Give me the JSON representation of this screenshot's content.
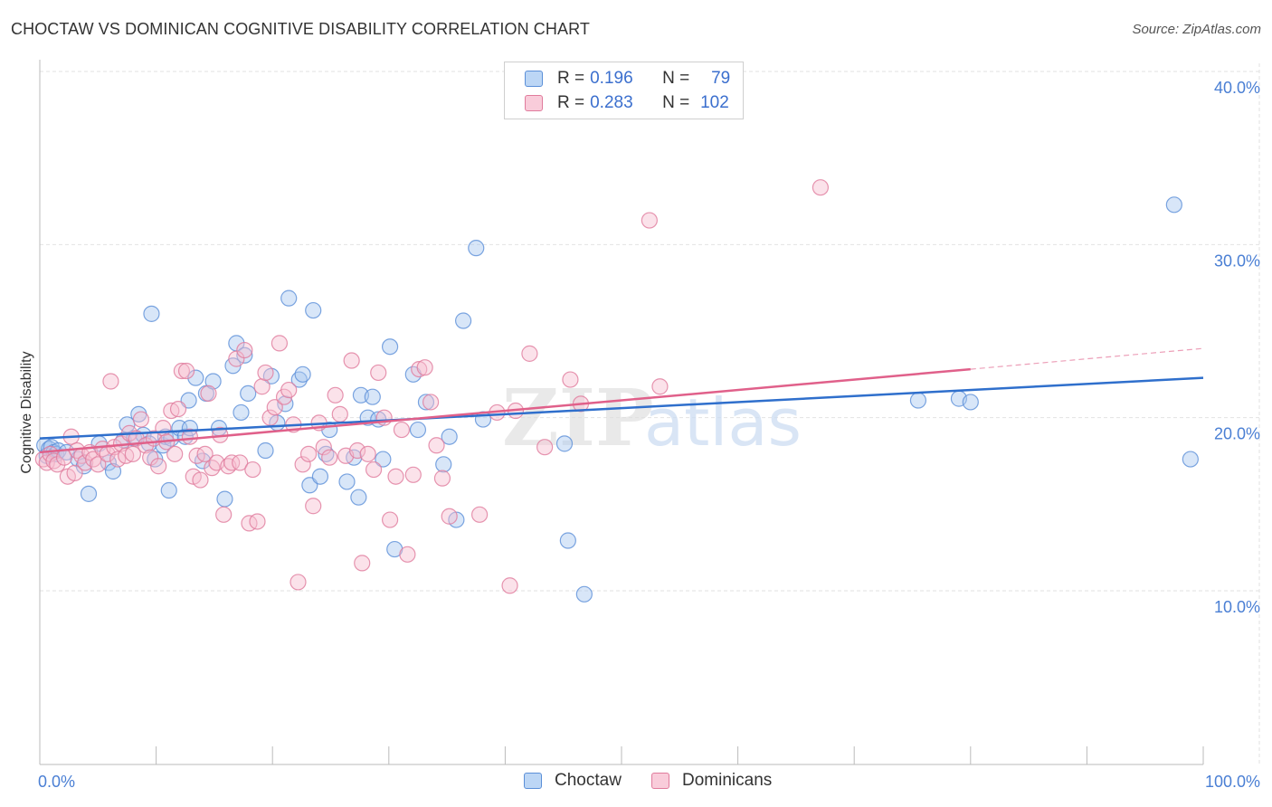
{
  "title": "CHOCTAW VS DOMINICAN COGNITIVE DISABILITY CORRELATION CHART",
  "source": "Source: ZipAtlas.com",
  "watermark": "ZIPatlas",
  "colors": {
    "choctaw_fill": "#a9c8f0",
    "choctaw_stroke": "#5b8fd8",
    "choctaw_line": "#2f6fcc",
    "dominican_fill": "#f7bfd0",
    "dominican_stroke": "#e07b9c",
    "dominican_line": "#e0608a",
    "tick_text": "#4a7fd4",
    "grid": "#e2e2e2"
  },
  "legend": {
    "rows": [
      {
        "r_label": "R =",
        "r_value": "0.196",
        "n_label": "N =",
        "n_value": "79"
      },
      {
        "r_label": "R =",
        "r_value": "0.283",
        "n_label": "N =",
        "n_value": "102"
      }
    ]
  },
  "bottom_legend": [
    "Choctaw",
    "Dominicans"
  ],
  "chart_data": {
    "type": "scatter",
    "title": "CHOCTAW VS DOMINICAN COGNITIVE DISABILITY CORRELATION CHART",
    "xlabel": "",
    "ylabel": "Cognitive Disability",
    "xlim": [
      0,
      100
    ],
    "ylim": [
      0,
      42
    ],
    "x_tick_labels": [
      "0.0%",
      "100.0%"
    ],
    "y_ticks": [
      10,
      20,
      30,
      40
    ],
    "y_tick_labels": [
      "10.0%",
      "20.0%",
      "30.0%",
      "40.0%"
    ],
    "grid": true,
    "legend_position": "top-center",
    "series": [
      {
        "name": "Choctaw",
        "r": 0.196,
        "n": 79,
        "trend": {
          "x": [
            0,
            100
          ],
          "y": [
            18.8,
            22.3
          ],
          "dashed_from": null
        },
        "points": [
          [
            0.4,
            18.4
          ],
          [
            0.6,
            17.8
          ],
          [
            0.8,
            18.2
          ],
          [
            1.0,
            18.3
          ],
          [
            1.2,
            18.0
          ],
          [
            1.4,
            17.9
          ],
          [
            1.6,
            18.1
          ],
          [
            2.3,
            18.0
          ],
          [
            3.3,
            17.6
          ],
          [
            3.8,
            17.2
          ],
          [
            4.2,
            15.6
          ],
          [
            5.1,
            18.5
          ],
          [
            5.9,
            17.4
          ],
          [
            6.3,
            16.9
          ],
          [
            7.2,
            18.7
          ],
          [
            7.5,
            19.6
          ],
          [
            8.1,
            18.8
          ],
          [
            8.5,
            20.2
          ],
          [
            8.9,
            19.0
          ],
          [
            9.4,
            18.5
          ],
          [
            9.6,
            26.0
          ],
          [
            9.9,
            17.6
          ],
          [
            10.6,
            18.4
          ],
          [
            10.8,
            18.9
          ],
          [
            11.1,
            15.8
          ],
          [
            11.3,
            18.8
          ],
          [
            12.0,
            19.4
          ],
          [
            12.5,
            18.9
          ],
          [
            12.8,
            21.0
          ],
          [
            12.9,
            19.4
          ],
          [
            13.4,
            22.3
          ],
          [
            14.0,
            17.5
          ],
          [
            14.3,
            21.4
          ],
          [
            14.9,
            22.1
          ],
          [
            15.4,
            19.4
          ],
          [
            15.9,
            15.3
          ],
          [
            16.6,
            23.0
          ],
          [
            16.9,
            24.3
          ],
          [
            17.3,
            20.3
          ],
          [
            17.6,
            23.6
          ],
          [
            17.9,
            21.4
          ],
          [
            19.4,
            18.1
          ],
          [
            19.9,
            22.4
          ],
          [
            20.4,
            19.7
          ],
          [
            21.1,
            20.8
          ],
          [
            21.4,
            26.9
          ],
          [
            22.3,
            22.2
          ],
          [
            22.6,
            22.5
          ],
          [
            23.2,
            16.1
          ],
          [
            23.5,
            26.2
          ],
          [
            24.1,
            16.6
          ],
          [
            24.6,
            17.9
          ],
          [
            24.9,
            19.3
          ],
          [
            26.4,
            16.3
          ],
          [
            27.0,
            17.7
          ],
          [
            27.4,
            15.4
          ],
          [
            27.6,
            21.3
          ],
          [
            28.2,
            20.0
          ],
          [
            28.6,
            21.2
          ],
          [
            29.1,
            19.9
          ],
          [
            29.5,
            17.6
          ],
          [
            30.1,
            24.1
          ],
          [
            30.5,
            12.4
          ],
          [
            32.1,
            22.5
          ],
          [
            32.5,
            19.3
          ],
          [
            33.2,
            20.9
          ],
          [
            34.7,
            17.3
          ],
          [
            35.2,
            18.9
          ],
          [
            35.8,
            14.1
          ],
          [
            36.4,
            25.6
          ],
          [
            37.5,
            29.8
          ],
          [
            38.1,
            19.9
          ],
          [
            45.1,
            18.5
          ],
          [
            45.4,
            12.9
          ],
          [
            46.8,
            9.8
          ],
          [
            75.5,
            21.0
          ],
          [
            79.0,
            21.1
          ],
          [
            80.0,
            20.9
          ],
          [
            97.5,
            32.3
          ],
          [
            98.9,
            17.6
          ]
        ]
      },
      {
        "name": "Dominicans",
        "r": 0.283,
        "n": 102,
        "trend": {
          "x": [
            0,
            80,
            100
          ],
          "y": [
            18.0,
            22.8,
            24.0
          ],
          "dashed_from": 80
        },
        "points": [
          [
            0.3,
            17.6
          ],
          [
            0.6,
            17.4
          ],
          [
            0.9,
            17.9
          ],
          [
            1.2,
            17.5
          ],
          [
            1.5,
            17.3
          ],
          [
            2.1,
            17.7
          ],
          [
            2.4,
            16.6
          ],
          [
            2.7,
            18.9
          ],
          [
            3.0,
            16.8
          ],
          [
            3.2,
            18.1
          ],
          [
            3.6,
            17.8
          ],
          [
            3.9,
            17.4
          ],
          [
            4.3,
            18.0
          ],
          [
            4.6,
            17.6
          ],
          [
            5.0,
            17.3
          ],
          [
            5.4,
            18.2
          ],
          [
            5.8,
            17.9
          ],
          [
            6.1,
            22.1
          ],
          [
            6.4,
            18.3
          ],
          [
            6.7,
            17.6
          ],
          [
            7.0,
            18.5
          ],
          [
            7.4,
            17.8
          ],
          [
            7.7,
            19.1
          ],
          [
            8.0,
            17.9
          ],
          [
            8.3,
            18.8
          ],
          [
            8.7,
            19.9
          ],
          [
            9.1,
            18.4
          ],
          [
            9.5,
            17.7
          ],
          [
            9.8,
            18.8
          ],
          [
            10.2,
            17.2
          ],
          [
            10.6,
            19.4
          ],
          [
            10.9,
            18.6
          ],
          [
            11.3,
            20.4
          ],
          [
            11.6,
            17.9
          ],
          [
            11.9,
            20.5
          ],
          [
            12.2,
            22.7
          ],
          [
            12.6,
            22.7
          ],
          [
            12.9,
            18.9
          ],
          [
            13.2,
            16.6
          ],
          [
            13.5,
            17.8
          ],
          [
            13.8,
            16.4
          ],
          [
            14.2,
            17.9
          ],
          [
            14.5,
            21.4
          ],
          [
            14.8,
            17.1
          ],
          [
            15.2,
            17.4
          ],
          [
            15.5,
            19.0
          ],
          [
            15.8,
            14.4
          ],
          [
            16.2,
            17.2
          ],
          [
            16.5,
            17.4
          ],
          [
            16.9,
            23.4
          ],
          [
            17.2,
            17.4
          ],
          [
            17.6,
            23.9
          ],
          [
            18.0,
            13.9
          ],
          [
            18.3,
            17.0
          ],
          [
            18.7,
            14.0
          ],
          [
            19.1,
            21.8
          ],
          [
            19.4,
            22.6
          ],
          [
            19.8,
            20.0
          ],
          [
            20.2,
            20.6
          ],
          [
            20.6,
            24.3
          ],
          [
            21.0,
            21.2
          ],
          [
            21.4,
            21.6
          ],
          [
            21.8,
            19.6
          ],
          [
            22.2,
            10.5
          ],
          [
            22.6,
            17.3
          ],
          [
            23.1,
            17.9
          ],
          [
            23.5,
            14.9
          ],
          [
            24.0,
            19.7
          ],
          [
            24.4,
            18.3
          ],
          [
            24.9,
            17.7
          ],
          [
            25.4,
            21.3
          ],
          [
            25.8,
            20.2
          ],
          [
            26.3,
            17.8
          ],
          [
            26.8,
            23.3
          ],
          [
            27.3,
            18.1
          ],
          [
            27.7,
            11.6
          ],
          [
            28.2,
            17.9
          ],
          [
            28.7,
            17.0
          ],
          [
            29.1,
            22.6
          ],
          [
            29.6,
            20.0
          ],
          [
            30.1,
            14.1
          ],
          [
            30.6,
            16.6
          ],
          [
            31.1,
            19.3
          ],
          [
            31.6,
            12.1
          ],
          [
            32.1,
            16.7
          ],
          [
            32.6,
            22.8
          ],
          [
            33.1,
            22.9
          ],
          [
            33.6,
            20.9
          ],
          [
            34.1,
            18.4
          ],
          [
            34.6,
            16.5
          ],
          [
            35.2,
            14.3
          ],
          [
            37.8,
            14.4
          ],
          [
            39.3,
            20.3
          ],
          [
            40.4,
            10.3
          ],
          [
            40.9,
            20.4
          ],
          [
            42.1,
            23.7
          ],
          [
            43.4,
            18.3
          ],
          [
            45.6,
            22.2
          ],
          [
            46.5,
            20.8
          ],
          [
            52.4,
            31.4
          ],
          [
            53.3,
            21.8
          ],
          [
            67.1,
            33.3
          ]
        ]
      }
    ]
  }
}
